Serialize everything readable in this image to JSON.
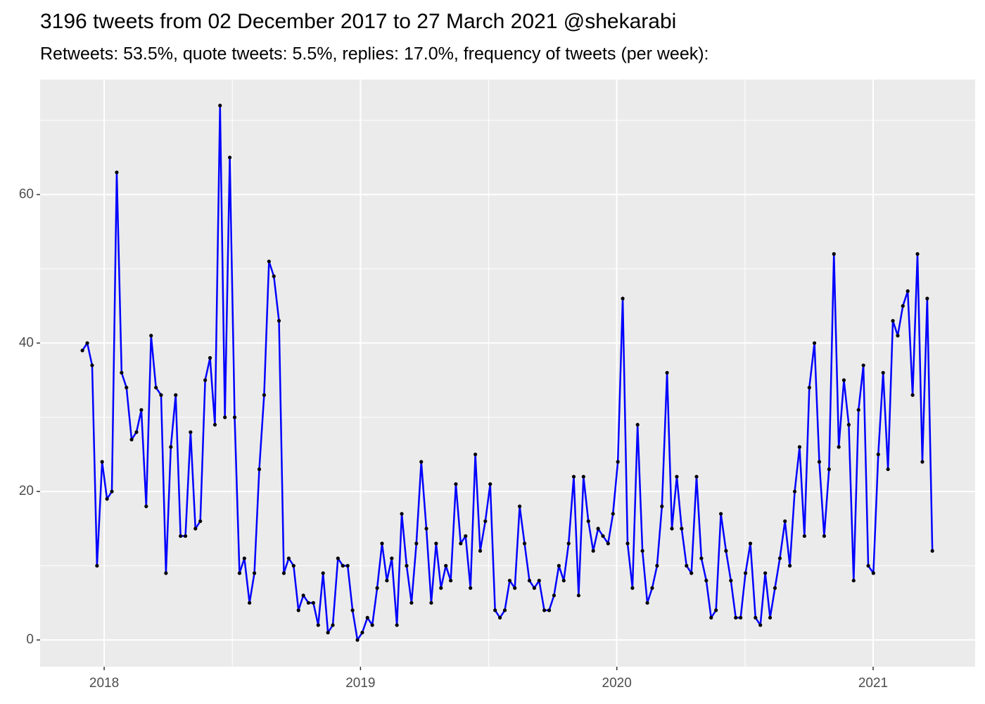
{
  "chart_data": {
    "type": "line",
    "title": "3196 tweets from 02 December 2017 to 27 March 2021 @shekarabi",
    "subtitle": "Retweets: 53.5%, quote tweets: 5.5%, replies: 17.0%, frequency of tweets (per week):",
    "x": [
      2017.915,
      2017.934,
      2017.953,
      2017.972,
      2017.992,
      2018.011,
      2018.03,
      2018.049,
      2018.068,
      2018.087,
      2018.107,
      2018.126,
      2018.145,
      2018.164,
      2018.183,
      2018.202,
      2018.222,
      2018.241,
      2018.26,
      2018.279,
      2018.298,
      2018.317,
      2018.337,
      2018.356,
      2018.375,
      2018.394,
      2018.413,
      2018.432,
      2018.452,
      2018.471,
      2018.49,
      2018.509,
      2018.528,
      2018.547,
      2018.567,
      2018.586,
      2018.605,
      2018.624,
      2018.643,
      2018.662,
      2018.682,
      2018.701,
      2018.72,
      2018.739,
      2018.758,
      2018.777,
      2018.797,
      2018.816,
      2018.835,
      2018.854,
      2018.873,
      2018.892,
      2018.912,
      2018.931,
      2018.95,
      2018.969,
      2018.988,
      2019.007,
      2019.027,
      2019.046,
      2019.065,
      2019.084,
      2019.103,
      2019.122,
      2019.142,
      2019.161,
      2019.18,
      2019.199,
      2019.218,
      2019.237,
      2019.257,
      2019.276,
      2019.295,
      2019.314,
      2019.333,
      2019.352,
      2019.372,
      2019.391,
      2019.41,
      2019.429,
      2019.448,
      2019.467,
      2019.487,
      2019.506,
      2019.525,
      2019.544,
      2019.563,
      2019.582,
      2019.602,
      2019.621,
      2019.64,
      2019.659,
      2019.678,
      2019.697,
      2019.717,
      2019.736,
      2019.755,
      2019.774,
      2019.793,
      2019.812,
      2019.832,
      2019.851,
      2019.87,
      2019.889,
      2019.908,
      2019.927,
      2019.946,
      2019.966,
      2019.985,
      2020.004,
      2020.023,
      2020.042,
      2020.061,
      2020.081,
      2020.1,
      2020.119,
      2020.138,
      2020.157,
      2020.176,
      2020.196,
      2020.215,
      2020.234,
      2020.253,
      2020.272,
      2020.291,
      2020.311,
      2020.33,
      2020.349,
      2020.368,
      2020.387,
      2020.406,
      2020.426,
      2020.445,
      2020.464,
      2020.483,
      2020.502,
      2020.521,
      2020.541,
      2020.56,
      2020.579,
      2020.598,
      2020.617,
      2020.636,
      2020.656,
      2020.675,
      2020.694,
      2020.713,
      2020.732,
      2020.751,
      2020.771,
      2020.79,
      2020.809,
      2020.828,
      2020.847,
      2020.866,
      2020.886,
      2020.905,
      2020.924,
      2020.943,
      2020.962,
      2020.981,
      2021.001,
      2021.02,
      2021.039,
      2021.058,
      2021.077,
      2021.096,
      2021.116,
      2021.135,
      2021.154,
      2021.173,
      2021.192,
      2021.211,
      2021.231
    ],
    "series": [
      {
        "color": "#0000ff",
        "point_color": "#000000",
        "values": [
          39,
          40,
          37,
          10,
          24,
          19,
          20,
          63,
          36,
          34,
          27,
          28,
          31,
          18,
          41,
          34,
          33,
          9,
          26,
          33,
          14,
          14,
          28,
          15,
          16,
          35,
          38,
          29,
          72,
          30,
          65,
          30,
          9,
          11,
          5,
          9,
          23,
          33,
          51,
          49,
          43,
          9,
          11,
          10,
          4,
          6,
          5,
          5,
          2,
          9,
          1,
          2,
          11,
          10,
          10,
          4,
          0,
          1,
          3,
          2,
          7,
          13,
          8,
          11,
          2,
          17,
          10,
          5,
          13,
          24,
          15,
          5,
          13,
          7,
          10,
          8,
          21,
          13,
          14,
          7,
          25,
          12,
          16,
          21,
          4,
          3,
          4,
          8,
          7,
          18,
          13,
          8,
          7,
          8,
          4,
          4,
          6,
          10,
          8,
          13,
          22,
          6,
          22,
          16,
          12,
          15,
          14,
          13,
          17,
          24,
          46,
          13,
          7,
          29,
          12,
          5,
          7,
          10,
          18,
          36,
          15,
          22,
          15,
          10,
          9,
          22,
          11,
          8,
          3,
          4,
          17,
          12,
          8,
          3,
          3,
          9,
          13,
          3,
          2,
          9,
          3,
          7,
          11,
          16,
          10,
          20,
          26,
          14,
          34,
          40,
          24,
          14,
          23,
          52,
          26,
          35,
          29,
          8,
          31,
          37,
          10,
          9,
          25,
          36,
          23,
          43,
          41,
          45,
          47,
          33,
          52,
          24,
          46,
          12
        ]
      }
    ],
    "xlim": [
      2017.75,
      2021.398
    ],
    "xticks": [
      2018,
      2019,
      2020,
      2021
    ],
    "ylim": [
      -3.6,
      75.5
    ],
    "yticks": [
      0,
      20,
      40,
      60
    ],
    "grid": true
  }
}
